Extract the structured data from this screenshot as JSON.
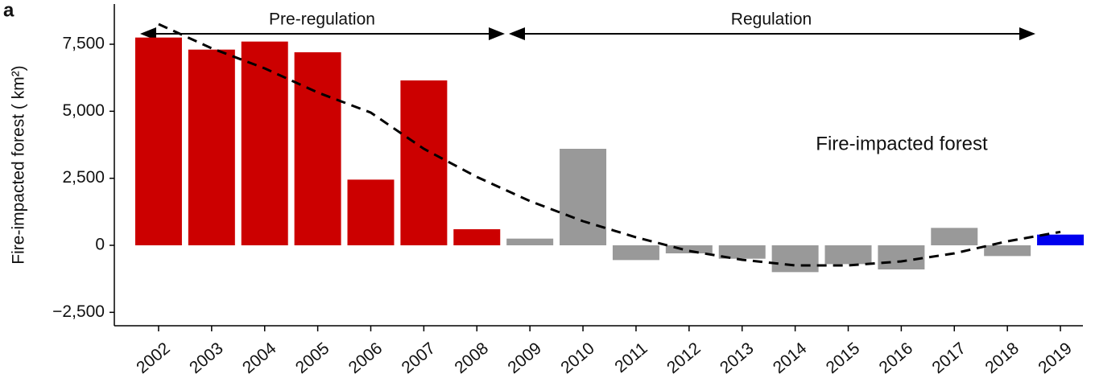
{
  "panel_label": "a",
  "chart_data": {
    "type": "bar",
    "ylabel": "Fire-impacted forest ( km²)",
    "annotation": "Fire-impacted forest",
    "periods": [
      "Pre-regulation",
      "Regulation"
    ],
    "categories": [
      "2002",
      "2003",
      "2004",
      "2005",
      "2006",
      "2007",
      "2008",
      "2009",
      "2010",
      "2011",
      "2012",
      "2013",
      "2014",
      "2015",
      "2016",
      "2017",
      "2018",
      "2019"
    ],
    "values": [
      7750,
      7300,
      7600,
      7200,
      2450,
      6150,
      600,
      250,
      3600,
      -550,
      -300,
      -500,
      -1000,
      -700,
      -900,
      650,
      -400,
      400
    ],
    "colors": [
      "#cc0000",
      "#cc0000",
      "#cc0000",
      "#cc0000",
      "#cc0000",
      "#cc0000",
      "#cc0000",
      "#999999",
      "#999999",
      "#999999",
      "#999999",
      "#999999",
      "#999999",
      "#999999",
      "#999999",
      "#999999",
      "#999999",
      "#0000ee"
    ],
    "trend": {
      "color": "#000000",
      "values": [
        8250,
        7350,
        6600,
        5700,
        4950,
        3600,
        2550,
        1650,
        900,
        300,
        -210,
        -540,
        -750,
        -750,
        -600,
        -300,
        150,
        500
      ]
    },
    "ylim": [
      -3000,
      9000
    ],
    "yticks": [
      {
        "value": -2500,
        "label": "−2,500"
      },
      0,
      {
        "value": 2500,
        "label": "2,500"
      },
      {
        "value": 5000,
        "label": "5,000"
      },
      {
        "value": 7500,
        "label": "7,500"
      }
    ]
  }
}
